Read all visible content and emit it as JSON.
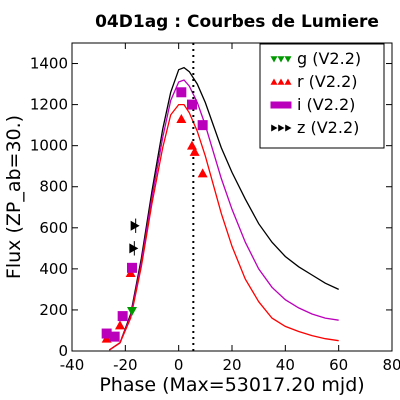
{
  "chart_data": {
    "type": "line",
    "title": "04D1ag : Courbes de Lumiere",
    "xlabel": "Phase (Max=53017.20 mjd)",
    "ylabel": "Flux (ZP_ab=30.)",
    "xlim": [
      -40,
      80
    ],
    "ylim": [
      0,
      1500
    ],
    "xticks": [
      -40,
      -20,
      0,
      20,
      40,
      60,
      80
    ],
    "yticks": [
      0,
      200,
      400,
      600,
      800,
      1000,
      1200,
      1400
    ],
    "max_phase_line": 5.5,
    "legend_position": "top-right",
    "grid": false,
    "models": [
      {
        "band": "z",
        "color": "#000000",
        "points": [
          [
            -26,
            5
          ],
          [
            -22,
            40
          ],
          [
            -18,
            180
          ],
          [
            -14,
            450
          ],
          [
            -10,
            780
          ],
          [
            -6,
            1080
          ],
          [
            -3,
            1260
          ],
          [
            0,
            1370
          ],
          [
            2,
            1380
          ],
          [
            4,
            1360
          ],
          [
            7,
            1300
          ],
          [
            10,
            1210
          ],
          [
            13,
            1100
          ],
          [
            16,
            990
          ],
          [
            20,
            870
          ],
          [
            25,
            740
          ],
          [
            30,
            620
          ],
          [
            35,
            530
          ],
          [
            40,
            460
          ],
          [
            45,
            410
          ],
          [
            50,
            370
          ],
          [
            55,
            330
          ],
          [
            60,
            300
          ]
        ]
      },
      {
        "band": "i",
        "color": "#bb00bb",
        "points": [
          [
            -26,
            5
          ],
          [
            -22,
            40
          ],
          [
            -18,
            170
          ],
          [
            -14,
            430
          ],
          [
            -10,
            750
          ],
          [
            -6,
            1040
          ],
          [
            -3,
            1220
          ],
          [
            0,
            1310
          ],
          [
            2,
            1320
          ],
          [
            4,
            1290
          ],
          [
            7,
            1210
          ],
          [
            10,
            1100
          ],
          [
            13,
            970
          ],
          [
            16,
            840
          ],
          [
            20,
            690
          ],
          [
            25,
            530
          ],
          [
            30,
            400
          ],
          [
            35,
            310
          ],
          [
            40,
            250
          ],
          [
            45,
            210
          ],
          [
            50,
            180
          ],
          [
            55,
            160
          ],
          [
            60,
            150
          ]
        ]
      },
      {
        "band": "r",
        "color": "#ff0000",
        "points": [
          [
            -26,
            5
          ],
          [
            -22,
            40
          ],
          [
            -18,
            160
          ],
          [
            -14,
            410
          ],
          [
            -10,
            720
          ],
          [
            -6,
            990
          ],
          [
            -3,
            1150
          ],
          [
            0,
            1200
          ],
          [
            2,
            1200
          ],
          [
            4,
            1160
          ],
          [
            7,
            1070
          ],
          [
            10,
            950
          ],
          [
            13,
            810
          ],
          [
            16,
            670
          ],
          [
            20,
            510
          ],
          [
            25,
            350
          ],
          [
            30,
            240
          ],
          [
            35,
            160
          ],
          [
            40,
            120
          ],
          [
            45,
            95
          ],
          [
            50,
            75
          ],
          [
            55,
            60
          ],
          [
            60,
            50
          ]
        ]
      }
    ],
    "series": [
      {
        "name": "g (V2.2)",
        "band": "g",
        "color": "#009900",
        "marker": "triangle-down",
        "points": [
          [
            -17.5,
            195
          ]
        ]
      },
      {
        "name": "r (V2.2)",
        "band": "r",
        "color": "#ff0000",
        "marker": "triangle-up",
        "points": [
          [
            -27,
            60
          ],
          [
            -24,
            70
          ],
          [
            -22,
            125
          ],
          [
            -18,
            380
          ],
          [
            1,
            1130
          ],
          [
            5,
            1000
          ],
          [
            6,
            970
          ],
          [
            9,
            865
          ]
        ]
      },
      {
        "name": "i (V2.2)",
        "band": "i",
        "color": "#bb00bb",
        "marker": "square",
        "points": [
          [
            -27,
            85
          ],
          [
            -24,
            70
          ],
          [
            -21,
            170
          ],
          [
            -17.5,
            405
          ],
          [
            1,
            1260
          ],
          [
            5,
            1200
          ],
          [
            9,
            1100
          ]
        ]
      },
      {
        "name": "z (V2.2)",
        "band": "z",
        "color": "#000000",
        "marker": "triangle-right",
        "points": [
          [
            -17,
            500
          ],
          [
            -16.5,
            610
          ]
        ]
      }
    ]
  }
}
